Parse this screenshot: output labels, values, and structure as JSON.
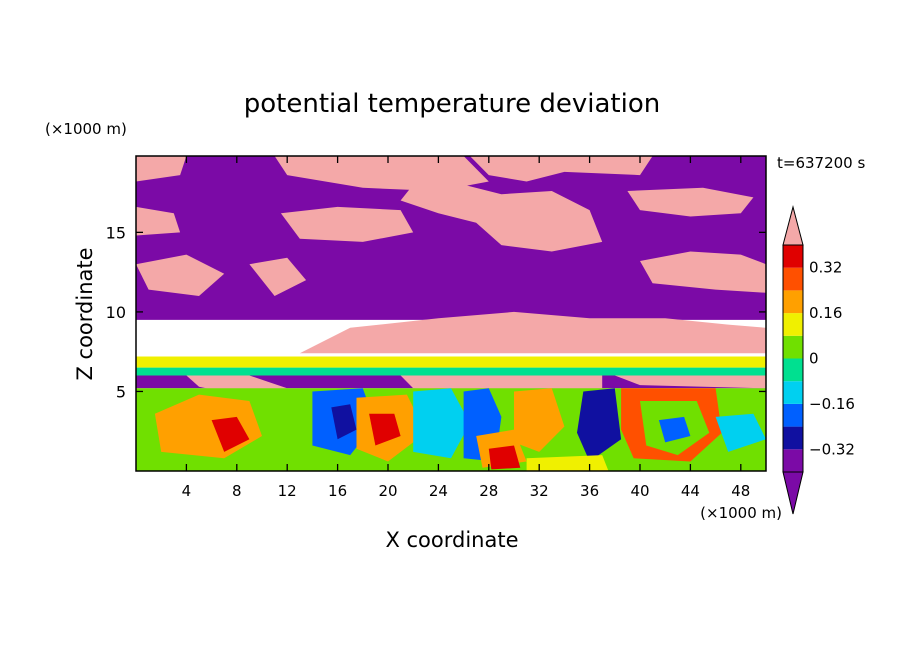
{
  "chart_data": {
    "type": "heatmap",
    "title": "potential temperature deviation",
    "xlabel": "X coordinate",
    "ylabel": "Z coordinate",
    "x_unit": "(×1000 m)",
    "y_unit": "(×1000 m)",
    "time_label": "t=637200 s",
    "xlim": [
      0,
      50
    ],
    "ylim": [
      0,
      19.8
    ],
    "x_ticks": [
      4,
      8,
      12,
      16,
      20,
      24,
      28,
      32,
      36,
      40,
      44,
      48
    ],
    "y_ticks": [
      5,
      10,
      15
    ],
    "colorbar": {
      "levels": [
        -0.4,
        -0.32,
        -0.24,
        -0.16,
        -0.08,
        0,
        0.08,
        0.16,
        0.24,
        0.32,
        0.4
      ],
      "tick_values": [
        -0.32,
        -0.16,
        0,
        0.16,
        0.32
      ],
      "tick_labels": [
        "−0.32",
        "−0.16",
        "0",
        "0.16",
        "0.32"
      ],
      "extend": "both",
      "under_color": "#7b0aa6",
      "over_color": "#f4a8a8",
      "colors": [
        "#7b0aa6",
        "#1010a0",
        "#0060ff",
        "#00d0f0",
        "#00e090",
        "#70e000",
        "#f0f000",
        "#ffa000",
        "#ff5000",
        "#e00000",
        "#f4a8a8"
      ]
    },
    "regions": [
      {
        "color": "#7b0aa6",
        "poly": [
          [
            0,
            19.8
          ],
          [
            50,
            19.8
          ],
          [
            50,
            9.5
          ],
          [
            0,
            9.5
          ]
        ]
      },
      {
        "color": "#f4a8a8",
        "poly": [
          [
            11,
            19.8
          ],
          [
            26,
            19.8
          ],
          [
            28,
            18.2
          ],
          [
            24,
            17.6
          ],
          [
            18,
            17.8
          ],
          [
            12,
            18.6
          ]
        ]
      },
      {
        "color": "#f4a8a8",
        "poly": [
          [
            26.5,
            19.8
          ],
          [
            41,
            19.8
          ],
          [
            40,
            18.6
          ],
          [
            34,
            18.8
          ],
          [
            31,
            18.2
          ],
          [
            28,
            18.6
          ]
        ]
      },
      {
        "color": "#f4a8a8",
        "poly": [
          [
            0,
            19.8
          ],
          [
            4,
            19.8
          ],
          [
            3.5,
            18.6
          ],
          [
            0,
            18.2
          ]
        ]
      },
      {
        "color": "#f4a8a8",
        "poly": [
          [
            22,
            18
          ],
          [
            25,
            18.2
          ],
          [
            29,
            17.4
          ],
          [
            33,
            17.6
          ],
          [
            36,
            16.4
          ],
          [
            37,
            14.4
          ],
          [
            33,
            13.8
          ],
          [
            29,
            14.2
          ],
          [
            27,
            15.6
          ],
          [
            24,
            16.2
          ],
          [
            21,
            17
          ]
        ]
      },
      {
        "color": "#f4a8a8",
        "poly": [
          [
            11.5,
            16.2
          ],
          [
            16,
            16.6
          ],
          [
            21,
            16.4
          ],
          [
            22,
            15
          ],
          [
            18,
            14.4
          ],
          [
            13,
            14.6
          ]
        ]
      },
      {
        "color": "#f4a8a8",
        "poly": [
          [
            0,
            16.6
          ],
          [
            3,
            16.2
          ],
          [
            3.5,
            15
          ],
          [
            0,
            14.8
          ]
        ]
      },
      {
        "color": "#f4a8a8",
        "poly": [
          [
            39,
            17.6
          ],
          [
            45,
            17.8
          ],
          [
            49,
            17.2
          ],
          [
            48,
            16.2
          ],
          [
            44,
            16
          ],
          [
            40,
            16.4
          ]
        ]
      },
      {
        "color": "#f4a8a8",
        "poly": [
          [
            40,
            13.2
          ],
          [
            44,
            13.8
          ],
          [
            48,
            13.6
          ],
          [
            50,
            13
          ],
          [
            50,
            11.2
          ],
          [
            46,
            11.4
          ],
          [
            41,
            11.8
          ]
        ]
      },
      {
        "color": "#f4a8a8",
        "poly": [
          [
            0,
            13
          ],
          [
            4,
            13.6
          ],
          [
            7,
            12.4
          ],
          [
            5,
            11
          ],
          [
            1,
            11.4
          ]
        ]
      },
      {
        "color": "#f4a8a8",
        "poly": [
          [
            9,
            13
          ],
          [
            12,
            13.4
          ],
          [
            13.5,
            12
          ],
          [
            11,
            11
          ]
        ]
      },
      {
        "color": "#f4a8a8",
        "poly": [
          [
            13,
            7.4
          ],
          [
            17,
            9
          ],
          [
            24,
            9.6
          ],
          [
            30,
            10
          ],
          [
            36,
            9.6
          ],
          [
            42,
            9.6
          ],
          [
            47,
            9.2
          ],
          [
            50,
            9
          ],
          [
            50,
            7.4
          ]
        ]
      },
      {
        "color": "#f0f000",
        "poly": [
          [
            0,
            7.2
          ],
          [
            50,
            7.2
          ],
          [
            50,
            6.5
          ],
          [
            0,
            6.5
          ]
        ]
      },
      {
        "color": "#00e090",
        "poly": [
          [
            0,
            6.5
          ],
          [
            50,
            6.5
          ],
          [
            50,
            6
          ],
          [
            0,
            6
          ]
        ]
      },
      {
        "color": "#7b0aa6",
        "poly": [
          [
            0,
            6
          ],
          [
            50,
            6
          ],
          [
            50,
            5.2
          ],
          [
            0,
            5.2
          ]
        ]
      },
      {
        "color": "#f4a8a8",
        "poly": [
          [
            4,
            6
          ],
          [
            9,
            6
          ],
          [
            12,
            5.2
          ],
          [
            8,
            4.8
          ],
          [
            5,
            5.3
          ]
        ]
      },
      {
        "color": "#f4a8a8",
        "poly": [
          [
            21,
            6
          ],
          [
            37,
            6
          ],
          [
            37,
            5
          ],
          [
            30,
            4.8
          ],
          [
            22,
            5.2
          ]
        ]
      },
      {
        "color": "#f4a8a8",
        "poly": [
          [
            38,
            6
          ],
          [
            50,
            6
          ],
          [
            50,
            5.2
          ],
          [
            40,
            5.4
          ]
        ]
      },
      {
        "color": "#70e000",
        "poly": [
          [
            0,
            5.2
          ],
          [
            50,
            5.2
          ],
          [
            50,
            0
          ],
          [
            0,
            0
          ]
        ]
      },
      {
        "color": "#ffa000",
        "poly": [
          [
            1.5,
            3.6
          ],
          [
            5,
            4.8
          ],
          [
            9,
            4.4
          ],
          [
            10,
            2.2
          ],
          [
            7,
            0.8
          ],
          [
            2,
            1.2
          ]
        ]
      },
      {
        "color": "#e00000",
        "poly": [
          [
            6,
            3.2
          ],
          [
            8,
            3.4
          ],
          [
            9,
            2
          ],
          [
            7,
            1.2
          ]
        ]
      },
      {
        "color": "#0060ff",
        "poly": [
          [
            14,
            5
          ],
          [
            18,
            5.2
          ],
          [
            19,
            3
          ],
          [
            17,
            1
          ],
          [
            14,
            1.6
          ]
        ]
      },
      {
        "color": "#1010a0",
        "poly": [
          [
            15.5,
            4
          ],
          [
            17,
            4.2
          ],
          [
            17.5,
            2.6
          ],
          [
            16,
            2
          ]
        ]
      },
      {
        "color": "#ffa000",
        "poly": [
          [
            17.5,
            4.6
          ],
          [
            21.5,
            4.8
          ],
          [
            23,
            2.4
          ],
          [
            20,
            0.6
          ],
          [
            17.5,
            1.4
          ]
        ]
      },
      {
        "color": "#e00000",
        "poly": [
          [
            18.5,
            3.6
          ],
          [
            20.5,
            3.6
          ],
          [
            21,
            2.2
          ],
          [
            19,
            1.6
          ]
        ]
      },
      {
        "color": "#00d0f0",
        "poly": [
          [
            22,
            5
          ],
          [
            25,
            5.2
          ],
          [
            26.5,
            3
          ],
          [
            25,
            0.8
          ],
          [
            22,
            1.2
          ]
        ]
      },
      {
        "color": "#0060ff",
        "poly": [
          [
            26,
            5
          ],
          [
            28,
            5.2
          ],
          [
            29,
            3.4
          ],
          [
            28.5,
            0.6
          ],
          [
            26,
            0.8
          ]
        ]
      },
      {
        "color": "#ffa000",
        "poly": [
          [
            27,
            2.2
          ],
          [
            30,
            2.6
          ],
          [
            31,
            0.6
          ],
          [
            27.5,
            0.2
          ]
        ]
      },
      {
        "color": "#e00000",
        "poly": [
          [
            28,
            1.4
          ],
          [
            30,
            1.6
          ],
          [
            30.5,
            0.2
          ],
          [
            28.2,
            0.1
          ]
        ]
      },
      {
        "color": "#ffa000",
        "poly": [
          [
            30,
            5
          ],
          [
            33,
            5.2
          ],
          [
            34,
            2.8
          ],
          [
            32,
            1.2
          ],
          [
            30,
            1.8
          ]
        ]
      },
      {
        "color": "#1010a0",
        "poly": [
          [
            35.5,
            5
          ],
          [
            38,
            5.2
          ],
          [
            38.5,
            2
          ],
          [
            36,
            0.6
          ],
          [
            35,
            2.4
          ]
        ]
      },
      {
        "color": "#ff5000",
        "poly": [
          [
            38.5,
            5.2
          ],
          [
            46,
            5.2
          ],
          [
            46.5,
            2.4
          ],
          [
            44,
            0.6
          ],
          [
            39.5,
            0.8
          ],
          [
            38.5,
            2.6
          ]
        ]
      },
      {
        "color": "#70e000",
        "poly": [
          [
            40,
            4.4
          ],
          [
            44.5,
            4.4
          ],
          [
            45.5,
            2.4
          ],
          [
            43,
            1
          ],
          [
            40.5,
            1.6
          ]
        ]
      },
      {
        "color": "#0060ff",
        "poly": [
          [
            41.5,
            3.2
          ],
          [
            43.5,
            3.4
          ],
          [
            44,
            2.2
          ],
          [
            42,
            1.8
          ]
        ]
      },
      {
        "color": "#00d0f0",
        "poly": [
          [
            46,
            3.4
          ],
          [
            49,
            3.6
          ],
          [
            50,
            2
          ],
          [
            47,
            1.2
          ]
        ]
      },
      {
        "color": "#f0f000",
        "poly": [
          [
            31,
            0.8
          ],
          [
            37,
            1
          ],
          [
            37.5,
            0
          ],
          [
            31,
            0
          ]
        ]
      }
    ]
  }
}
